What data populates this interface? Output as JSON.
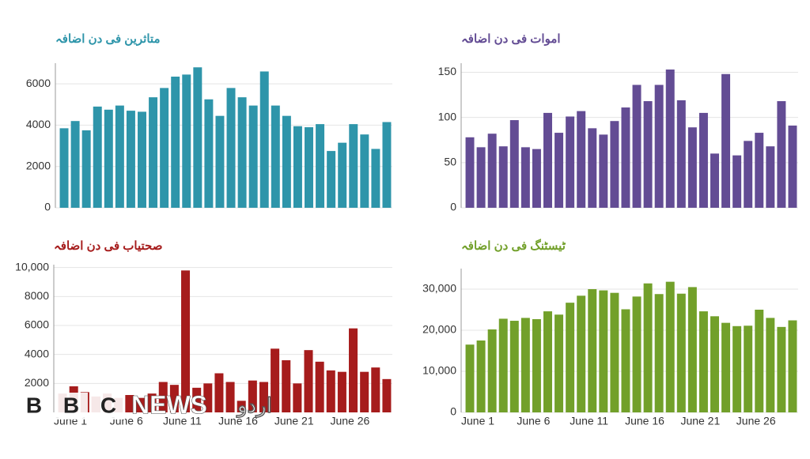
{
  "chart_data": [
    {
      "type": "bar",
      "title": "متاثرین فی دن اضافہ",
      "color": "#2e95aa",
      "values": [
        3850,
        4200,
        3750,
        4900,
        4750,
        4950,
        4700,
        4650,
        5350,
        5800,
        6350,
        6450,
        6800,
        5250,
        4450,
        5800,
        5350,
        4950,
        6600,
        4950,
        4450,
        3950,
        3900,
        4050,
        2750,
        3150,
        4050,
        3550,
        2850,
        4150
      ],
      "ylim": [
        0,
        7000
      ],
      "yticks": [
        0,
        2000,
        4000,
        6000
      ],
      "grid": true
    },
    {
      "type": "bar",
      "title": "اموات فی دن اضافہ",
      "color": "#634c94",
      "values": [
        78,
        67,
        82,
        68,
        97,
        67,
        65,
        105,
        83,
        101,
        107,
        88,
        81,
        96,
        111,
        136,
        118,
        136,
        153,
        119,
        89,
        105,
        60,
        148,
        58,
        74,
        83,
        68,
        118,
        91
      ],
      "ylim": [
        0,
        160
      ],
      "yticks": [
        0,
        50,
        100,
        150
      ],
      "grid": true
    },
    {
      "type": "bar",
      "title": "صحتیاب فی دن اضافہ",
      "color": "#a61c1c",
      "categories": [
        "June 1",
        null,
        null,
        null,
        null,
        "June 6",
        null,
        null,
        null,
        null,
        "June 11",
        null,
        null,
        null,
        null,
        "June 16",
        null,
        null,
        null,
        null,
        "June 21",
        null,
        null,
        null,
        null,
        "June 26",
        null,
        null,
        null,
        null
      ],
      "values": [
        1300,
        1800,
        1400,
        1100,
        1300,
        1000,
        1200,
        1000,
        1300,
        2100,
        1900,
        9800,
        1700,
        2000,
        2700,
        2100,
        800,
        2200,
        2100,
        4400,
        3600,
        2000,
        4300,
        3500,
        2900,
        2800,
        5800,
        2800,
        3100,
        2300
      ],
      "ylim": [
        0,
        10200
      ],
      "yticks": [
        2000,
        4000,
        6000,
        8000,
        {
          "value": 10000,
          "label": "10,000"
        }
      ],
      "grid": true
    },
    {
      "type": "bar",
      "title": "ٹیسٹنگ فی دن اضافہ",
      "color": "#72a02a",
      "categories": [
        "June 1",
        null,
        null,
        null,
        null,
        "June 6",
        null,
        null,
        null,
        null,
        "June 11",
        null,
        null,
        null,
        null,
        "June 16",
        null,
        null,
        null,
        null,
        "June 21",
        null,
        null,
        null,
        null,
        "June 26",
        null,
        null,
        null,
        null
      ],
      "values": [
        16500,
        17500,
        20200,
        22800,
        22300,
        23000,
        22700,
        24600,
        23800,
        26700,
        28400,
        30000,
        29700,
        29100,
        25100,
        28200,
        31400,
        28800,
        31800,
        28900,
        30500,
        24600,
        23400,
        21800,
        21000,
        21100,
        25000,
        23000,
        20800,
        22400
      ],
      "ylim": [
        0,
        35000
      ],
      "yticks": [
        0,
        {
          "value": 10000,
          "label": "10,000"
        },
        {
          "value": 20000,
          "label": "20,000"
        },
        {
          "value": 30000,
          "label": "30,000"
        }
      ],
      "grid": true
    }
  ],
  "logo": {
    "letters": [
      "B",
      "B",
      "C"
    ],
    "name": "NEWS",
    "language": "اردو"
  }
}
